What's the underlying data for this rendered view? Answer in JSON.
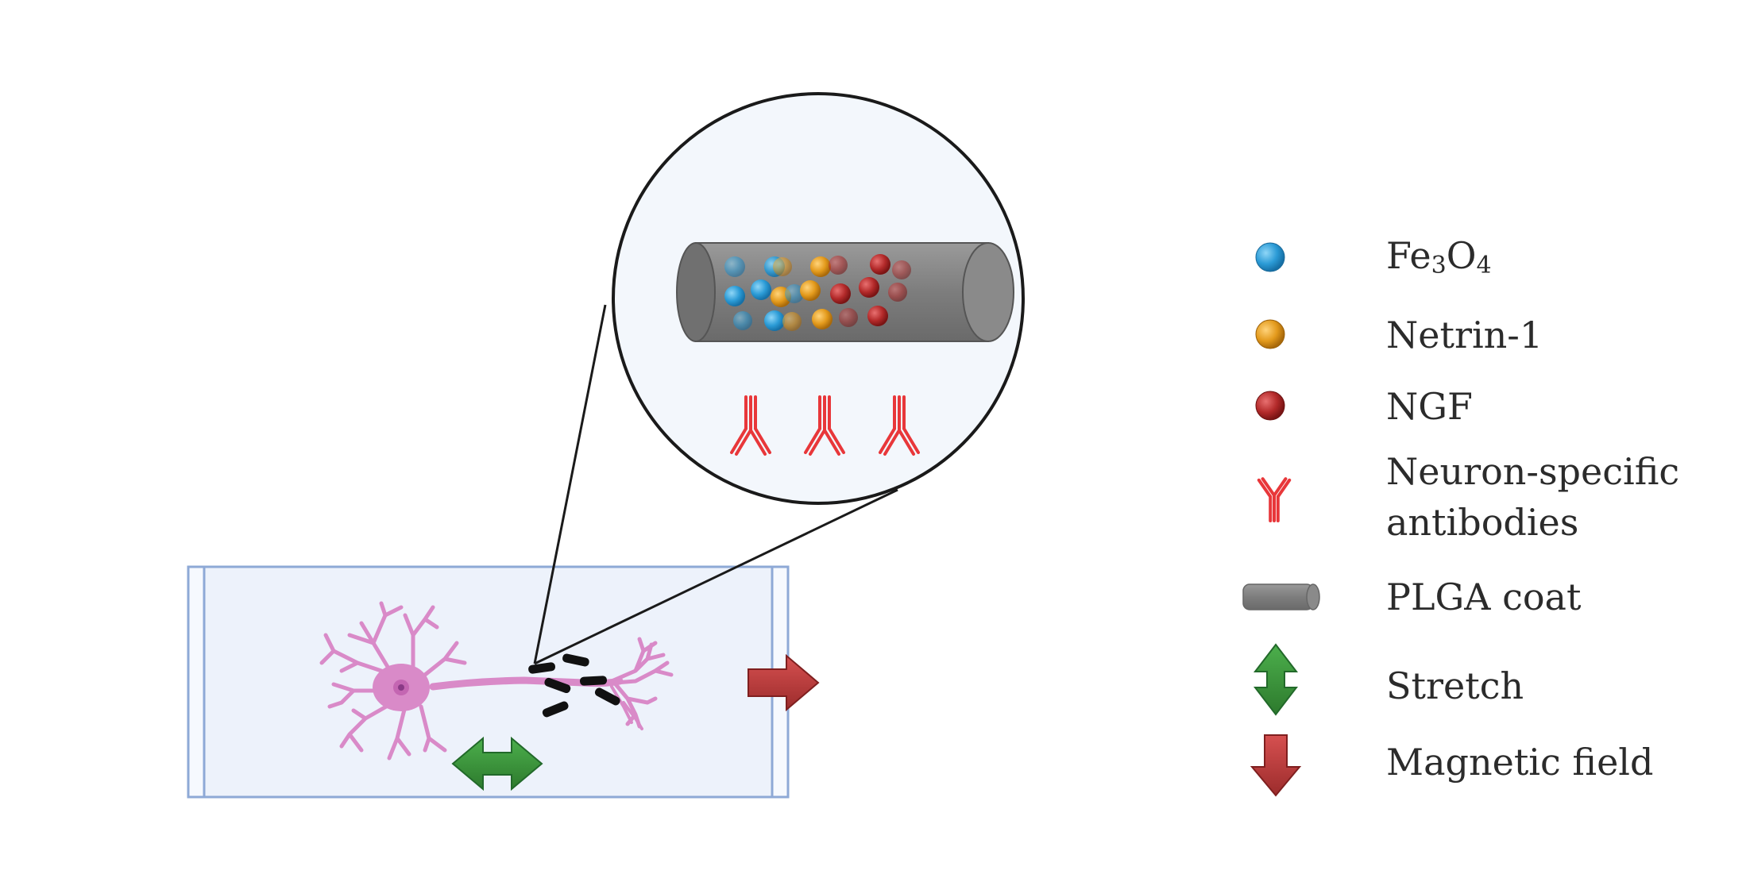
{
  "legend": {
    "fe3o4": {
      "base": "Fe",
      "sub1": "3",
      "mid": "O",
      "sub2": "4",
      "icon": "blue-sphere-icon",
      "color": "#2b9bd6"
    },
    "netrin": {
      "label": "Netrin-1",
      "icon": "orange-sphere-icon",
      "color": "#e39a1c"
    },
    "ngf": {
      "label": "NGF",
      "icon": "red-sphere-icon",
      "color": "#b32a2a"
    },
    "antibodies": {
      "line1": "Neuron-specific",
      "line2": "antibodies",
      "icon": "antibody-icon",
      "color": "#e8373a"
    },
    "plga": {
      "label": "PLGA coat",
      "icon": "cylinder-icon",
      "color": "#8e8e8e"
    },
    "stretch": {
      "label": "Stretch",
      "icon": "double-arrow-icon",
      "color": "#3a8f3a"
    },
    "magnetic": {
      "label": "Magnetic field",
      "icon": "down-arrow-icon",
      "color": "#b8393a"
    }
  },
  "colors": {
    "chamber_fill": "#edf2fb",
    "chamber_stroke": "#8ea9d6",
    "zoom_fill": "#f3f7fc",
    "neuron": "#d98ac8",
    "nucleus": "#8a3a86",
    "nanoparticle": "#111111"
  }
}
